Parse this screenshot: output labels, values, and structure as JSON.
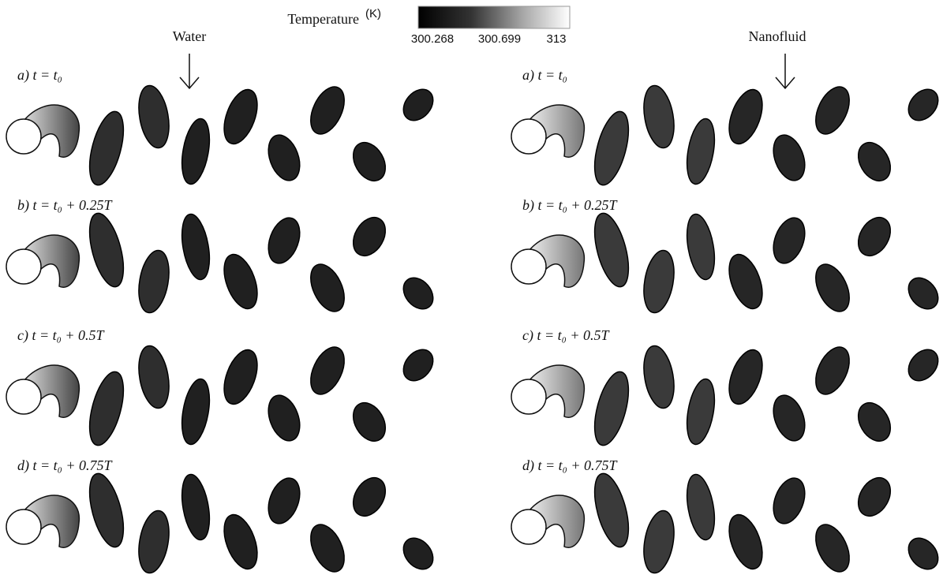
{
  "colorbar": {
    "title": "Temperature",
    "unit": "(K)",
    "ticks": [
      "300.268",
      "300.699",
      "313"
    ]
  },
  "columns": [
    {
      "label": "Water",
      "panels": [
        "a) t = t₀",
        "b) t = t₀ + 0.25T",
        "c) t = t₀ + 0.5T",
        "d) t = t₀ + 0.75T"
      ]
    },
    {
      "label": "Nanofluid",
      "panels": [
        "a) t = t₀",
        "b) t = t₀ + 0.25T",
        "c) t = t₀ + 0.5T",
        "d) t = t₀ + 0.75T"
      ]
    }
  ]
}
